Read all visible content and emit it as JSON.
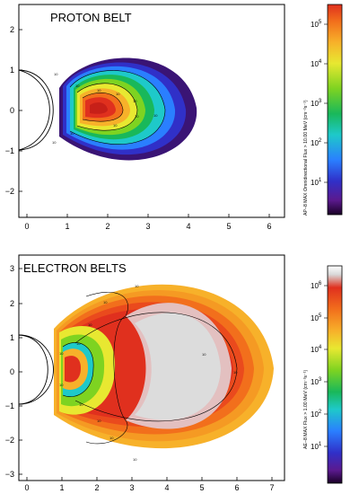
{
  "colors": {
    "frame": "#000000",
    "colorbar_stops": [
      "#ffffff",
      "#dcdcdc",
      "#e0301e",
      "#f26f1c",
      "#f7b12a",
      "#e8e831",
      "#7ed321",
      "#19b85a",
      "#1ec9c9",
      "#2a7fff",
      "#3030c8",
      "#5b1a8f",
      "#1a0026"
    ]
  },
  "panels": [
    {
      "title": "PROTON BELT",
      "x_ticks": [
        "0",
        "1",
        "2",
        "3",
        "4",
        "5",
        "6"
      ],
      "y_ticks": [
        "2",
        "1",
        "0",
        "−1",
        "−2"
      ],
      "contour_labels": [
        "10",
        "10",
        "10",
        "10",
        "10",
        "10",
        "10",
        "10",
        "10",
        "10"
      ],
      "colorbar": {
        "label": "AP−8 MAX Omnidirectional Flux > 10.00 MeV (cm⁻²s⁻¹)",
        "ticks": [
          {
            "base": "10",
            "exp": "5"
          },
          {
            "base": "10",
            "exp": "4"
          },
          {
            "base": "10",
            "exp": "3"
          },
          {
            "base": "10",
            "exp": "2"
          },
          {
            "base": "10",
            "exp": "1"
          }
        ]
      }
    },
    {
      "title": "ELECTRON BELTS",
      "x_ticks": [
        "0",
        "1",
        "2",
        "3",
        "4",
        "5",
        "6",
        "7"
      ],
      "y_ticks": [
        "3",
        "2",
        "1",
        "0",
        "−1",
        "−2",
        "−3"
      ],
      "contour_labels": [
        "10",
        "10",
        "10",
        "10",
        "10",
        "10",
        "10",
        "10",
        "10",
        "10",
        "10",
        "10"
      ],
      "colorbar": {
        "label": "AE−8 MAX Flux > 1.00 MeV (cm⁻²s⁻¹)",
        "ticks": [
          {
            "base": "10",
            "exp": "6"
          },
          {
            "base": "10",
            "exp": "5"
          },
          {
            "base": "10",
            "exp": "4"
          },
          {
            "base": "10",
            "exp": "3"
          },
          {
            "base": "10",
            "exp": "2"
          },
          {
            "base": "10",
            "exp": "1"
          }
        ]
      }
    }
  ]
}
